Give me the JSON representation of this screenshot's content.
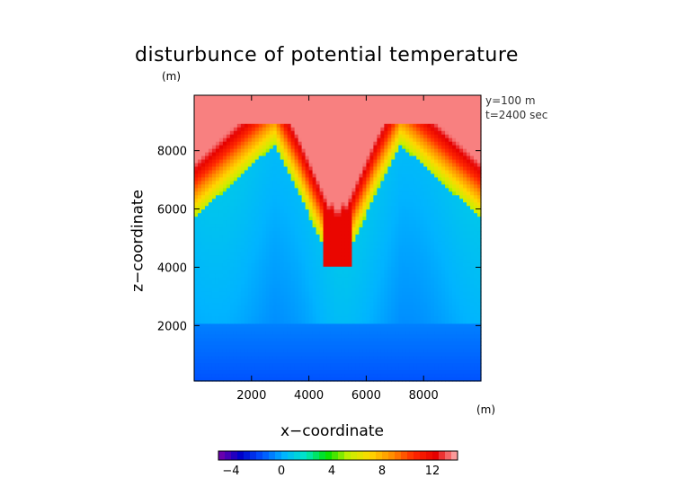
{
  "chart_data": {
    "type": "heatmap",
    "title": "disturbunce of potential temperature",
    "title_unit": "(m)",
    "xlabel": "x−coordinate",
    "ylabel": "z−coordinate",
    "x_unit": "(m)",
    "info_lines": [
      "y=100 m",
      "t=2400 sec"
    ],
    "xlim": [
      0,
      10000
    ],
    "ylim": [
      100,
      9900
    ],
    "x_ticks": [
      2000,
      4000,
      6000,
      8000
    ],
    "y_ticks": [
      2000,
      4000,
      6000,
      8000
    ],
    "colorbar": {
      "range": [
        -5,
        14
      ],
      "ticks": [
        -4,
        0,
        4,
        8,
        12
      ],
      "tick_labels": [
        "−4",
        "0",
        "4",
        "8",
        "12"
      ]
    },
    "colormap": [
      "#7a00a8",
      "#0000c8",
      "#0050ff",
      "#00b4ff",
      "#00e6c8",
      "#00e000",
      "#c8f000",
      "#ffd700",
      "#ff8c00",
      "#ff2800",
      "#e60000",
      "#ffb4b4"
    ],
    "features": {
      "plumes": [
        {
          "x": 3100,
          "z_top": 8100,
          "base_half_width": 3600
        },
        {
          "x": 6900,
          "z_top": 8100,
          "base_half_width": 3600
        }
      ],
      "central_cusp": {
        "x": 5000,
        "z_bottom": 3700
      },
      "cold_layer_top": 2100,
      "background_top_value": 13.5,
      "cold_layer_value": -1.5
    }
  }
}
